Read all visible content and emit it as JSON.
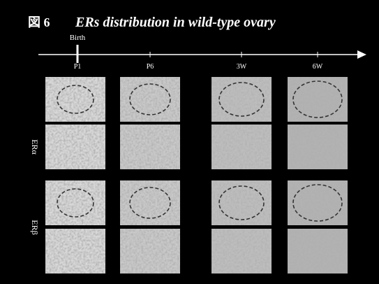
{
  "header": {
    "figure_label": "図 6",
    "title": "ERs distribution in wild-type ovary"
  },
  "timeline": {
    "birth_label": "Birth",
    "stages": [
      "P1",
      "P6",
      "3W",
      "6W"
    ]
  },
  "rows": [
    "ERα",
    "ERβ"
  ]
}
